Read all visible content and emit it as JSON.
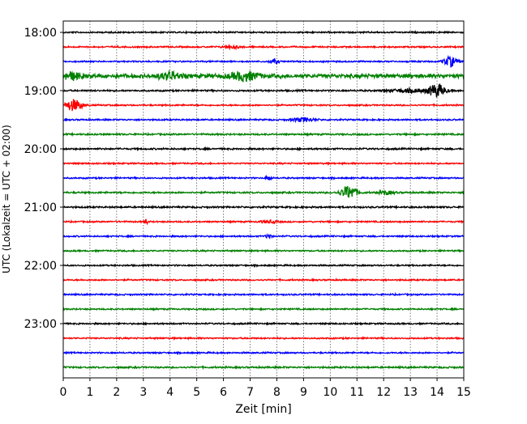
{
  "chart_data": {
    "type": "line",
    "title": "",
    "xlabel": "Zeit  [min]",
    "ylabel": "UTC (Lokalzeit = UTC + 02:00)",
    "xlim": [
      0,
      15
    ],
    "x_ticks": [
      "0",
      "1",
      "2",
      "3",
      "4",
      "5",
      "6",
      "7",
      "8",
      "9",
      "10",
      "11",
      "12",
      "13",
      "14",
      "15"
    ],
    "y_ticks": [
      "18:00",
      "19:00",
      "20:00",
      "21:00",
      "22:00",
      "23:00"
    ],
    "grid": "vertical dotted",
    "trace_interval_min": 15,
    "trace_count": 24,
    "colors": [
      "#000000",
      "#ff0000",
      "#0000ff",
      "#008000"
    ],
    "base_noise": [
      0.8,
      0.8,
      0.8,
      2.2,
      0.9,
      0.8,
      0.8,
      0.9,
      0.9,
      0.8,
      0.8,
      0.9,
      0.9,
      0.8,
      0.8,
      0.8,
      0.8,
      0.8,
      0.8,
      0.8,
      0.8,
      0.8,
      0.8,
      0.9
    ],
    "events": [
      {
        "trace": 1,
        "t": 6.3,
        "amp": 1.5,
        "width": 0.3
      },
      {
        "trace": 2,
        "t": 7.9,
        "amp": 3,
        "width": 0.15
      },
      {
        "trace": 2,
        "t": 14.5,
        "amp": 6,
        "width": 0.25
      },
      {
        "trace": 3,
        "t": 0.3,
        "amp": 4,
        "width": 0.4
      },
      {
        "trace": 3,
        "t": 4.0,
        "amp": 4,
        "width": 0.4
      },
      {
        "trace": 3,
        "t": 6.8,
        "amp": 5,
        "width": 0.5
      },
      {
        "trace": 4,
        "t": 14.0,
        "amp": 8,
        "width": 0.3
      },
      {
        "trace": 4,
        "t": 13.0,
        "amp": 2,
        "width": 0.8
      },
      {
        "trace": 5,
        "t": 0.4,
        "amp": 7,
        "width": 0.3
      },
      {
        "trace": 6,
        "t": 9.0,
        "amp": 2.5,
        "width": 0.4
      },
      {
        "trace": 10,
        "t": 7.7,
        "amp": 3,
        "width": 0.1
      },
      {
        "trace": 11,
        "t": 10.7,
        "amp": 8,
        "width": 0.3
      },
      {
        "trace": 11,
        "t": 12.1,
        "amp": 2,
        "width": 0.3
      },
      {
        "trace": 13,
        "t": 3.1,
        "amp": 4,
        "width": 0.05
      },
      {
        "trace": 13,
        "t": 7.7,
        "amp": 1.5,
        "width": 0.3
      },
      {
        "trace": 14,
        "t": 7.7,
        "amp": 3,
        "width": 0.1
      }
    ]
  }
}
